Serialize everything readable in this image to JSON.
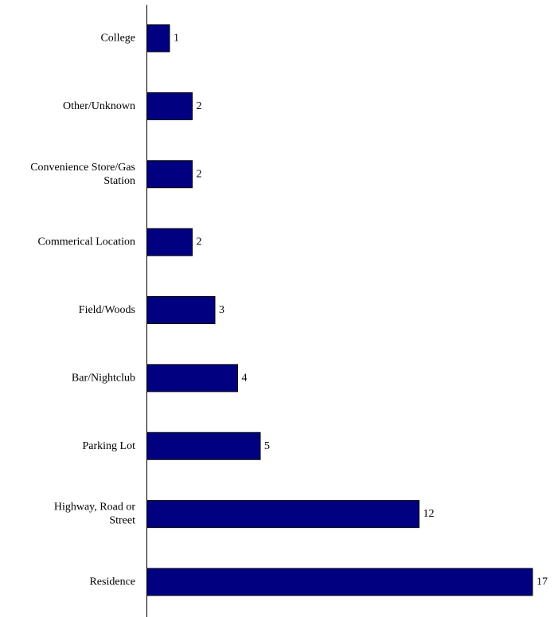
{
  "chart_data": {
    "type": "bar",
    "orientation": "horizontal",
    "categories": [
      "College",
      "Other/Unknown",
      "Convenience Store/Gas Station",
      "Commerical Location",
      "Field/Woods",
      "Bar/Nightclub",
      "Parking Lot",
      "Highway, Road or Street",
      "Residence"
    ],
    "category_lines": [
      [
        "College"
      ],
      [
        "Other/Unknown"
      ],
      [
        "Convenience Store/Gas",
        "Station"
      ],
      [
        "Commerical Location"
      ],
      [
        "Field/Woods"
      ],
      [
        "Bar/Nightclub"
      ],
      [
        "Parking Lot"
      ],
      [
        "Highway, Road or",
        "Street"
      ],
      [
        "Residence"
      ]
    ],
    "values": [
      1,
      2,
      2,
      2,
      3,
      4,
      5,
      12,
      17
    ],
    "data_labels": [
      "1",
      "2",
      "2",
      "2",
      "3",
      "4",
      "5",
      "12",
      "17"
    ],
    "xlim": [
      0,
      17
    ],
    "grid": false,
    "legend": "none",
    "title": "",
    "xlabel": "",
    "ylabel": "",
    "colors": {
      "bar": "#000080",
      "bar_border": "#000000",
      "text": "#000000"
    }
  }
}
